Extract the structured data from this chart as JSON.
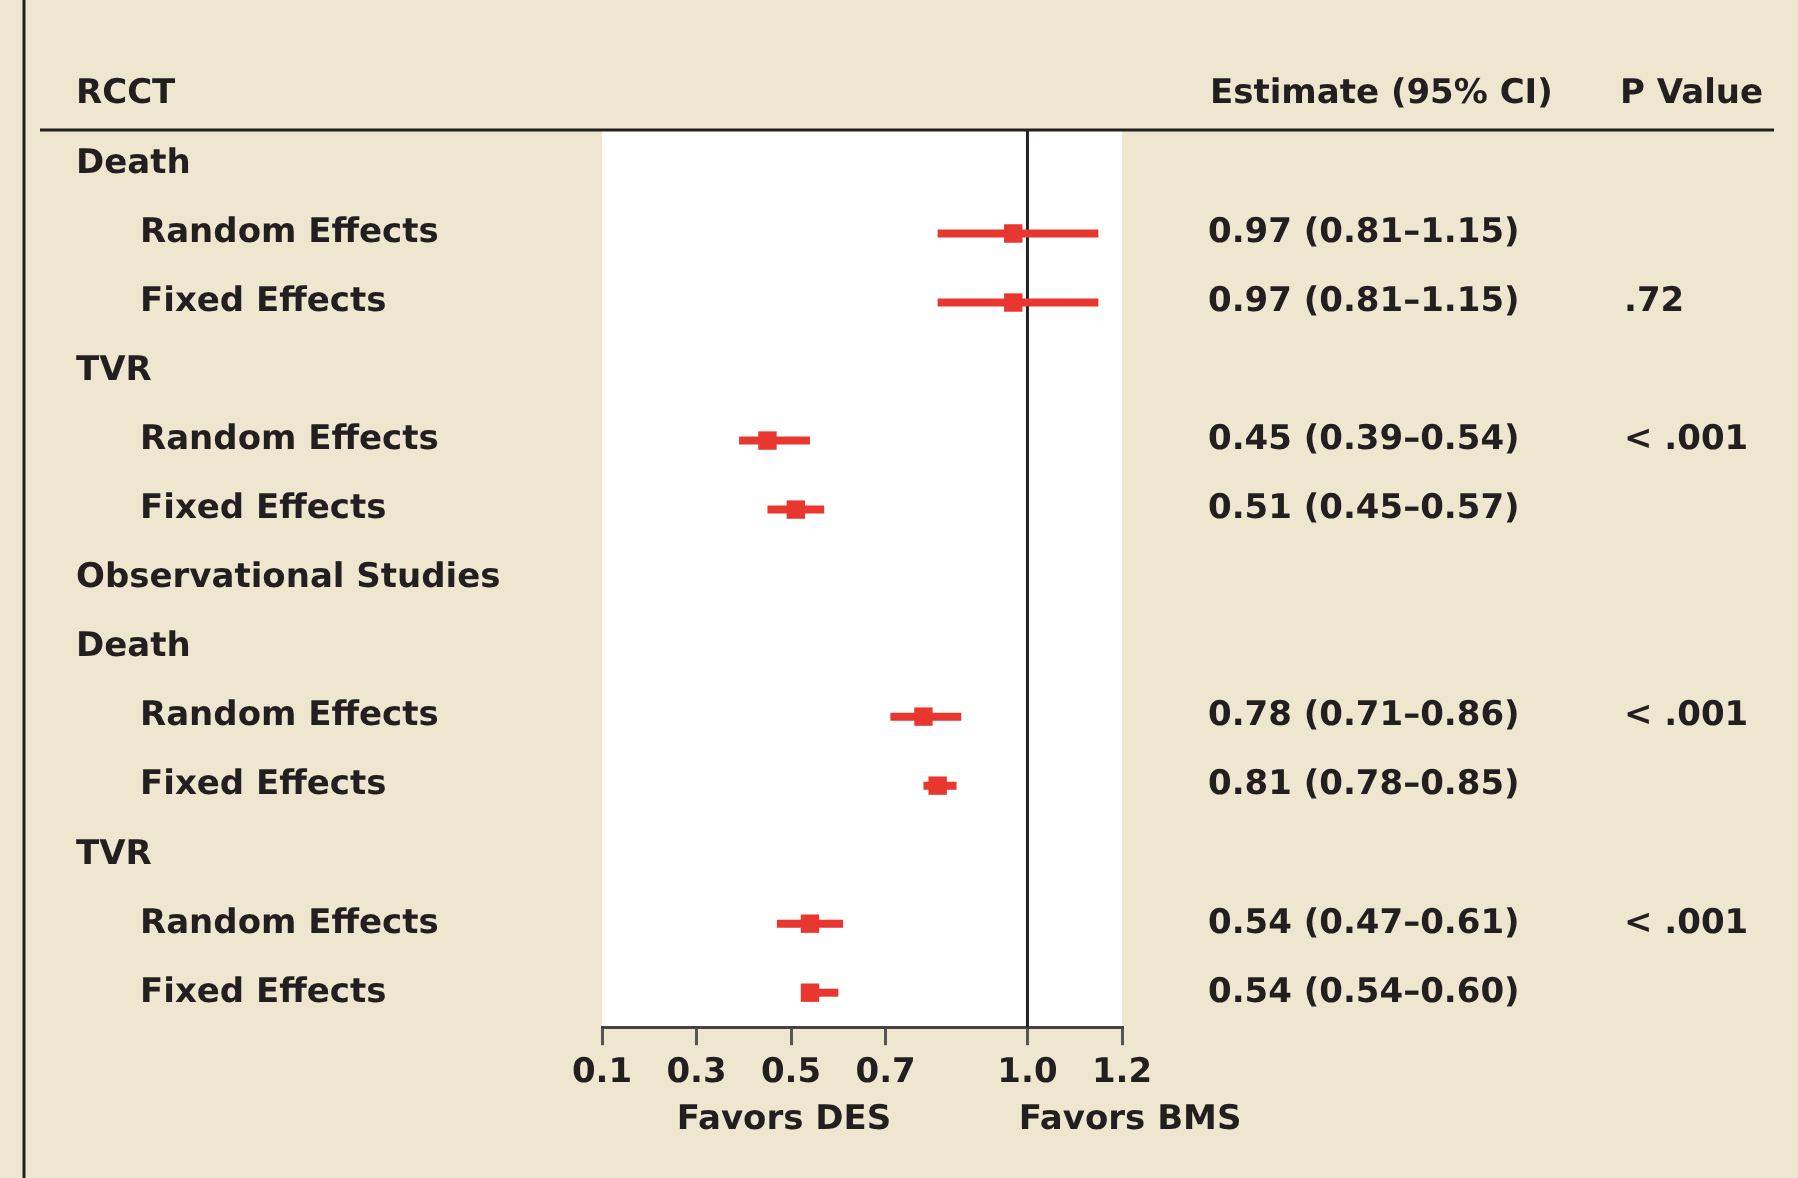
{
  "chart_data": {
    "type": "scatter",
    "orientation": "horizontal",
    "marker": "square",
    "color": "#e8372f",
    "ylabel": "RCCT",
    "categories": [
      null,
      "Random Effects",
      "Fixed Effects",
      null,
      "Random Effects",
      "Fixed Effects",
      null,
      null,
      "Random Effects",
      "Fixed Effects",
      null,
      "Random Effects",
      "Fixed Effects"
    ],
    "values": [
      null,
      0.97,
      0.97,
      null,
      0.45,
      0.51,
      null,
      null,
      0.78,
      0.81,
      null,
      0.54,
      0.54
    ],
    "errors": [
      null,
      [
        0.81,
        1.15
      ],
      [
        0.81,
        1.15
      ],
      null,
      [
        0.39,
        0.54
      ],
      [
        0.45,
        0.57
      ],
      null,
      null,
      [
        0.71,
        0.86
      ],
      [
        0.78,
        0.85
      ],
      null,
      [
        0.47,
        0.61
      ],
      [
        0.54,
        0.6
      ]
    ],
    "value_labels": [
      null,
      "0.97 (0.81–1.15)",
      "0.97 (0.81–1.15)",
      null,
      "0.45 (0.39–0.54)",
      "0.51 (0.45–0.57)",
      null,
      null,
      "0.78 (0.71–0.86)",
      "0.81 (0.78–0.85)",
      null,
      "0.54 (0.47–0.61)",
      "0.54 (0.54–0.60)"
    ],
    "xlim": [
      0.1,
      1.2
    ],
    "xticks": [
      0.1,
      0.3,
      0.5,
      0.7,
      {
        "value": 1,
        "label": "1.0"
      },
      1.2
    ],
    "ref_lines": [
      {
        "axis": "x",
        "value": 1,
        "color": "#222222"
      }
    ],
    "annotations": [
      "Estimate (95% CI)",
      "P Value",
      "Favors DES",
      "Favors BMS",
      "Death",
      "TVR",
      "Observational Studies",
      "Death",
      "TVR",
      ".72",
      "< .001",
      "< .001",
      "< .001"
    ]
  }
}
